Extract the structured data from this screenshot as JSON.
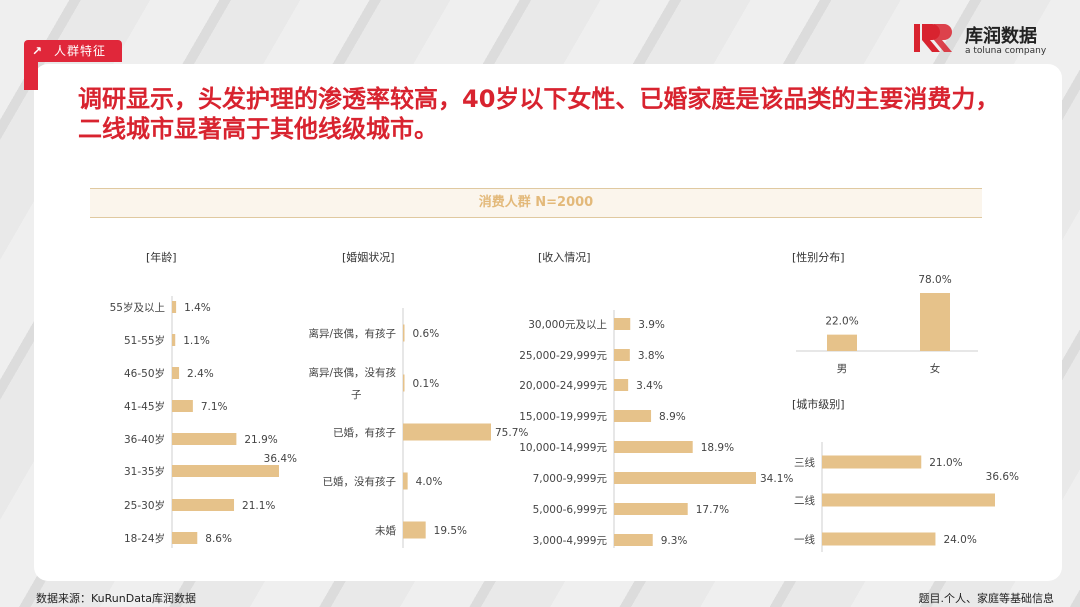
{
  "section_tag": "人群特征",
  "brand": {
    "name": "库润数据",
    "sub": "a toluna company"
  },
  "headline": "调研显示，头发护理的渗透率较高，40岁以下女性、已婚家庭是该品类的主要消费力，二线城市显著高于其他线级城市。",
  "banner": "消费人群 N=2000",
  "footer": {
    "source": "数据来源：KuRunData库润数据",
    "note": "题目.个人、家庭等基础信息"
  },
  "colors": {
    "bar": "#e6c28a",
    "accent": "#d8232f"
  },
  "chart_data": [
    {
      "type": "bar",
      "orientation": "horizontal",
      "title": "[年龄]",
      "categories": [
        "55岁及以上",
        "51-55岁",
        "46-50岁",
        "41-45岁",
        "36-40岁",
        "31-35岁",
        "25-30岁",
        "18-24岁"
      ],
      "values": [
        1.4,
        1.1,
        2.4,
        7.1,
        21.9,
        36.4,
        21.1,
        8.6
      ],
      "labels": [
        "1.4%",
        "1.1%",
        "2.4%",
        "7.1%",
        "21.9%",
        "36.4%",
        "21.1%",
        "8.6%"
      ]
    },
    {
      "type": "bar",
      "orientation": "horizontal",
      "title": "[婚姻状况]",
      "categories": [
        "离异/丧偶，有孩子",
        "离异/丧偶，没有孩子",
        "已婚，有孩子",
        "已婚，没有孩子",
        "未婚"
      ],
      "values": [
        0.6,
        0.1,
        75.7,
        4.0,
        19.5
      ],
      "labels": [
        "0.6%",
        "0.1%",
        "75.7%",
        "4.0%",
        "19.5%"
      ]
    },
    {
      "type": "bar",
      "orientation": "horizontal",
      "title": "[收入情况]",
      "categories": [
        "30,000元及以上",
        "25,000-29,999元",
        "20,000-24,999元",
        "15,000-19,999元",
        "10,000-14,999元",
        "7,000-9,999元",
        "5,000-6,999元",
        "3,000-4,999元"
      ],
      "values": [
        3.9,
        3.8,
        3.4,
        8.9,
        18.9,
        34.1,
        17.7,
        9.3
      ],
      "labels": [
        "3.9%",
        "3.8%",
        "3.4%",
        "8.9%",
        "18.9%",
        "34.1%",
        "17.7%",
        "9.3%"
      ]
    },
    {
      "type": "bar",
      "orientation": "vertical",
      "title": "[性别分布]",
      "categories": [
        "男",
        "女"
      ],
      "values": [
        22.0,
        78.0
      ],
      "labels": [
        "22.0%",
        "78.0%"
      ]
    },
    {
      "type": "bar",
      "orientation": "horizontal",
      "title": "[城市级别]",
      "categories": [
        "三线",
        "二线",
        "一线"
      ],
      "values": [
        21.0,
        36.6,
        24.0
      ],
      "labels": [
        "21.0%",
        "36.6%",
        "24.0%"
      ]
    }
  ]
}
